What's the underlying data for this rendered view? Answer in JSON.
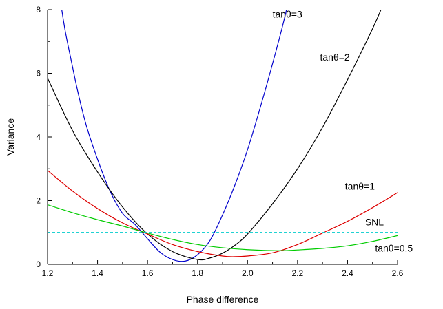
{
  "chart_data": {
    "type": "line",
    "xlabel": "Phase difference",
    "ylabel": "Variance",
    "xlim": [
      1.2,
      2.6
    ],
    "ylim": [
      0,
      8
    ],
    "x_ticks": [
      "1.2",
      "1.4",
      "1.6",
      "1.8",
      "2.0",
      "2.2",
      "2.4",
      "2.6"
    ],
    "y_ticks": [
      "0",
      "2",
      "4",
      "6",
      "8"
    ],
    "grid": false,
    "series": [
      {
        "name": "tanθ=3",
        "color": "#0000cc",
        "dash": false,
        "x": [
          1.2,
          1.25,
          1.3,
          1.35,
          1.4,
          1.45,
          1.5,
          1.55,
          1.6,
          1.65,
          1.7,
          1.75,
          1.8,
          1.85,
          1.9,
          1.95,
          2.0,
          2.05,
          2.1,
          2.15,
          2.2
        ],
        "y": [
          12.5,
          8.4,
          6.2,
          4.5,
          3.3,
          2.3,
          1.6,
          1.25,
          0.8,
          0.38,
          0.15,
          0.1,
          0.3,
          0.75,
          1.55,
          2.5,
          3.6,
          4.9,
          6.3,
          7.8,
          9.6
        ]
      },
      {
        "name": "tanθ=2",
        "color": "#000000",
        "dash": false,
        "x": [
          1.2,
          1.3,
          1.4,
          1.5,
          1.6,
          1.7,
          1.8,
          1.85,
          1.9,
          1.95,
          2.0,
          2.1,
          2.2,
          2.3,
          2.4,
          2.5,
          2.55
        ],
        "y": [
          5.85,
          4.2,
          2.9,
          1.8,
          0.95,
          0.4,
          0.15,
          0.2,
          0.35,
          0.6,
          0.95,
          1.9,
          3.0,
          4.3,
          5.8,
          7.4,
          8.3
        ]
      },
      {
        "name": "tanθ=1",
        "color": "#dd0000",
        "dash": false,
        "x": [
          1.2,
          1.3,
          1.4,
          1.5,
          1.6,
          1.7,
          1.8,
          1.9,
          1.95,
          2.0,
          2.1,
          2.2,
          2.3,
          2.4,
          2.5,
          2.6
        ],
        "y": [
          2.95,
          2.3,
          1.75,
          1.3,
          0.95,
          0.62,
          0.4,
          0.26,
          0.24,
          0.26,
          0.36,
          0.62,
          0.98,
          1.35,
          1.78,
          2.25
        ]
      },
      {
        "name": "tanθ=0.5",
        "color": "#00cc00",
        "dash": false,
        "x": [
          1.2,
          1.3,
          1.4,
          1.5,
          1.6,
          1.7,
          1.8,
          1.9,
          2.0,
          2.1,
          2.15,
          2.2,
          2.3,
          2.4,
          2.5,
          2.6
        ],
        "y": [
          1.87,
          1.62,
          1.4,
          1.2,
          0.98,
          0.78,
          0.62,
          0.52,
          0.46,
          0.43,
          0.43,
          0.45,
          0.5,
          0.58,
          0.72,
          0.9
        ]
      },
      {
        "name": "SNL",
        "color": "#00cccc",
        "dash": true,
        "x": [
          1.2,
          2.6
        ],
        "y": [
          1.0,
          1.0
        ]
      }
    ],
    "annotations": [
      {
        "text": "tanθ=3",
        "x": 2.1,
        "y": 7.75
      },
      {
        "text": "tanθ=2",
        "x": 2.29,
        "y": 6.4
      },
      {
        "text": "tanθ=1",
        "x": 2.39,
        "y": 2.35
      },
      {
        "text": "SNL",
        "x": 2.47,
        "y": 1.22
      },
      {
        "text": "tanθ=0.5",
        "x": 2.51,
        "y": 0.4
      }
    ]
  }
}
